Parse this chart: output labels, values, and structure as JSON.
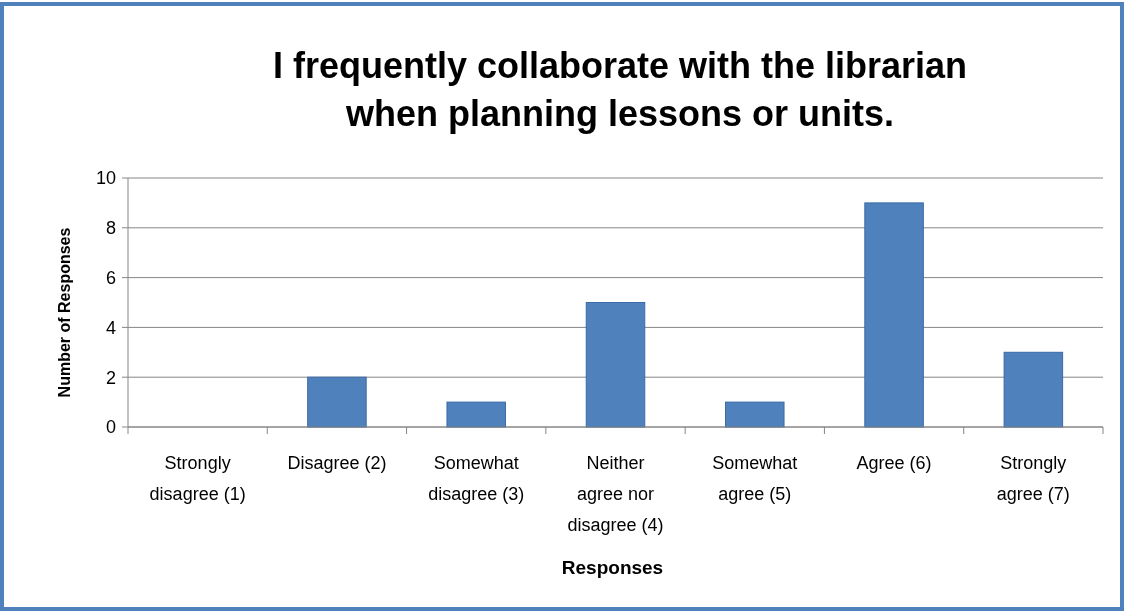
{
  "chart_data": {
    "type": "bar",
    "title": "I frequently collaborate with the librarian when planning lessons or units.",
    "xlabel": "Responses",
    "ylabel": "Number of Responses",
    "categories": [
      "Strongly disagree (1)",
      "Disagree (2)",
      "Somewhat disagree (3)",
      "Neither agree nor disagree (4)",
      "Somewhat agree (5)",
      "Agree (6)",
      "Strongly agree (7)"
    ],
    "values": [
      0,
      2,
      1,
      5,
      1,
      9,
      3
    ],
    "color": "#4f81bd",
    "ylim": [
      0,
      10
    ],
    "yticks": [
      0,
      2,
      4,
      6,
      8,
      10
    ],
    "grid": "y"
  }
}
